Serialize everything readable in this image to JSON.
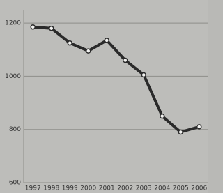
{
  "chart_data": {
    "type": "line",
    "categories": [
      "1997",
      "1998",
      "1999",
      "2000",
      "2001",
      "2002",
      "2003",
      "2004",
      "2005",
      "2006"
    ],
    "values": [
      1185,
      1180,
      1125,
      1095,
      1135,
      1060,
      1005,
      850,
      790,
      810
    ],
    "color": "#2a2a2a",
    "ylim": [
      600,
      1250
    ],
    "yticks": [
      600,
      800,
      1000,
      1200
    ],
    "grid": true
  }
}
